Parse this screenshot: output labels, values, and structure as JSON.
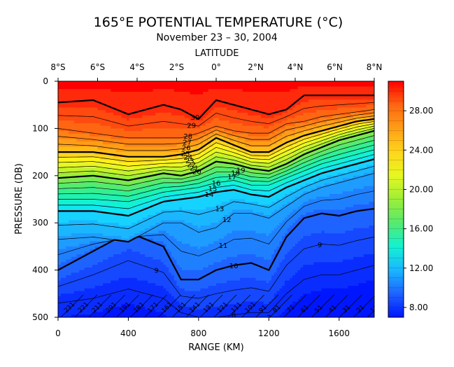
{
  "chart_data": {
    "type": "contour",
    "title": "165°E POTENTIAL TEMPERATURE (°C)",
    "subtitle": "November 23 – 30, 2004",
    "top_axis_label": "LATITUDE",
    "top_ticks": [
      "8°S",
      "6°S",
      "4°S",
      "2°S",
      "0°",
      "2°N",
      "4°N",
      "6°N",
      "8°N"
    ],
    "xlabel": "RANGE (KM)",
    "x_ticks": [
      0,
      400,
      800,
      1200,
      1600
    ],
    "xlim": [
      0,
      1800
    ],
    "ylabel": "PRESSURE (DB)",
    "y_ticks": [
      0,
      100,
      200,
      300,
      400,
      500
    ],
    "ylim": [
      0,
      500
    ],
    "colorbar_ticks": [
      "8.00",
      "12.00",
      "16.00",
      "20.00",
      "24.00",
      "28.00"
    ],
    "colorbar_range": [
      7,
      31
    ],
    "contour_interval": 1,
    "bold_levels": [
      30,
      25,
      20,
      14,
      10
    ],
    "contour_labels": [
      "30",
      "29",
      "28",
      "27",
      "26",
      "25",
      "24",
      "23",
      "22",
      "21",
      "20",
      "19",
      "18",
      "17",
      "16",
      "15",
      "14",
      "13",
      "12",
      "11",
      "10",
      "9",
      "9",
      "8",
      "7"
    ],
    "bottom_labels": [
      "231",
      "221",
      "211",
      "201",
      "191",
      "181",
      "171",
      "161",
      "151",
      "141",
      "131",
      "121",
      "111",
      "101",
      "91",
      "81",
      "71",
      "61",
      "51",
      "41",
      "31",
      "21",
      "11"
    ],
    "isotherm_depths": {
      "x_km": [
        0,
        200,
        400,
        600,
        700,
        800,
        900,
        1000,
        1100,
        1200,
        1300,
        1400,
        1500,
        1600,
        1700,
        1800
      ],
      "levels": [
        {
          "t": 30,
          "z": [
            45,
            40,
            70,
            50,
            60,
            80,
            40,
            50,
            60,
            70,
            60,
            30,
            30,
            30,
            30,
            30
          ]
        },
        {
          "t": 28,
          "z": [
            100,
            110,
            120,
            120,
            120,
            110,
            95,
            105,
            110,
            110,
            90,
            85,
            75,
            70,
            65,
            60
          ]
        },
        {
          "t": 25,
          "z": [
            150,
            150,
            160,
            160,
            155,
            145,
            120,
            135,
            150,
            150,
            130,
            115,
            105,
            95,
            85,
            80
          ]
        },
        {
          "t": 20,
          "z": [
            205,
            200,
            210,
            195,
            200,
            190,
            170,
            175,
            185,
            190,
            175,
            155,
            140,
            125,
            115,
            105
          ]
        },
        {
          "t": 16,
          "z": [
            250,
            250,
            255,
            235,
            230,
            225,
            215,
            210,
            220,
            220,
            205,
            190,
            175,
            165,
            155,
            145
          ]
        },
        {
          "t": 14,
          "z": [
            275,
            275,
            285,
            255,
            250,
            245,
            235,
            230,
            240,
            245,
            225,
            210,
            195,
            185,
            175,
            165
          ]
        },
        {
          "t": 12,
          "z": [
            335,
            330,
            340,
            300,
            300,
            320,
            310,
            280,
            280,
            290,
            265,
            240,
            225,
            215,
            205,
            195
          ]
        },
        {
          "t": 10,
          "z": [
            400,
            360,
            320,
            350,
            420,
            420,
            400,
            390,
            385,
            400,
            330,
            290,
            280,
            285,
            275,
            270
          ]
        },
        {
          "t": 8,
          "z": [
            470,
            460,
            440,
            460,
            490,
            500,
            500,
            495,
            490,
            490,
            450,
            420,
            410,
            410,
            400,
            390
          ]
        }
      ]
    }
  },
  "colors": {
    "scale": [
      "#0016ff",
      "#0a2dff",
      "#1648ff",
      "#1e63ff",
      "#1f80ff",
      "#1e9cff",
      "#1ab7ff",
      "#16d2ff",
      "#10e8f0",
      "#12f2d2",
      "#1ef2b0",
      "#35ef8f",
      "#56ea6e",
      "#78ea52",
      "#9cee38",
      "#c2f32a",
      "#e6f720",
      "#fff21a",
      "#ffd61a",
      "#ffba18",
      "#ff9e16",
      "#ff8214",
      "#ff6612",
      "#ff4a10",
      "#ff2a0c",
      "#ff0000"
    ]
  }
}
